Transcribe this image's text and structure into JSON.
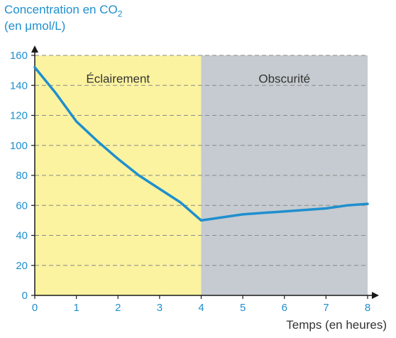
{
  "chart_data": {
    "type": "line",
    "ylabel_line1": "Concentration en CO",
    "ylabel_subscript": "2",
    "ylabel_line2": "(en μmol/L)",
    "xlabel": "Temps (en heures)",
    "xlim": [
      0,
      8
    ],
    "ylim": [
      0,
      160
    ],
    "x_ticks": [
      0,
      1,
      2,
      3,
      4,
      5,
      6,
      7,
      8
    ],
    "y_ticks": [
      0,
      20,
      40,
      60,
      80,
      100,
      120,
      140,
      160
    ],
    "grid": "horizontal dashed",
    "regions": [
      {
        "label": "Éclairement",
        "x_from": 0,
        "x_to": 4,
        "color": "#fbf3a0"
      },
      {
        "label": "Obscurité",
        "x_from": 4,
        "x_to": 8,
        "color": "#c5cbd0"
      }
    ],
    "series": [
      {
        "color": "#1f8fce",
        "x": [
          0,
          0.5,
          1,
          1.5,
          2,
          2.5,
          3,
          3.5,
          4,
          4.5,
          5,
          5.5,
          6,
          6.5,
          7,
          7.5,
          8
        ],
        "y": [
          152,
          135,
          116,
          103,
          91,
          80,
          71,
          62,
          50,
          52,
          54,
          55,
          56,
          57,
          58,
          60,
          61
        ]
      }
    ],
    "axis_color": "#1a1a1a",
    "tick_color": "#1f8fce"
  }
}
